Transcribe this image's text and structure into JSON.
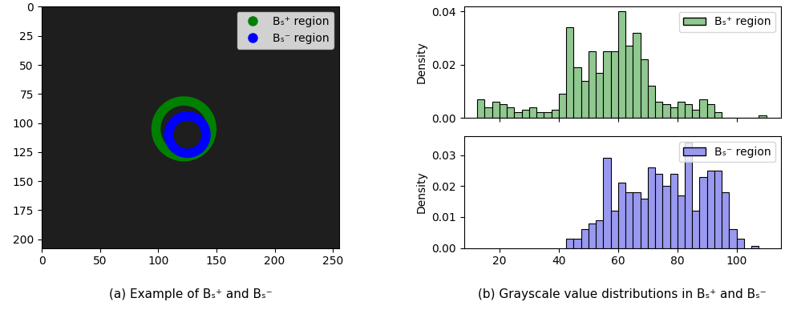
{
  "chart_data": [
    {
      "type": "image",
      "caption": "(a) Example of Bₛ⁺ and Bₛ⁻",
      "xlim": [
        -0.5,
        255.5
      ],
      "ylim": [
        207.5,
        -0.5
      ],
      "xticks": [
        0,
        50,
        100,
        150,
        200,
        250
      ],
      "yticks": [
        0,
        25,
        50,
        75,
        100,
        125,
        150,
        175,
        200
      ],
      "legend": "upper right",
      "series": [
        {
          "name": "Bₛ⁺ region",
          "color": "#008000",
          "center": [
            122,
            105
          ],
          "radii": [
            20,
            28
          ]
        },
        {
          "name": "Bₛ⁻ region",
          "color": "#0000ff",
          "center": [
            125,
            110
          ],
          "radii": [
            12,
            20
          ]
        }
      ]
    },
    {
      "type": "histogram",
      "caption": "(b) Grayscale value distributions in Bₛ⁺ and Bₛ⁻",
      "ylabel": "Density",
      "xlim": [
        8,
        115
      ],
      "xticks": [
        20,
        40,
        60,
        80,
        100
      ],
      "ylim": [
        0,
        0.042
      ],
      "yticks": [
        {
          "value": 0,
          "label": "0.00"
        },
        {
          "value": 0.02,
          "label": "0.02"
        },
        {
          "value": 0.04,
          "label": "0.04"
        }
      ],
      "tick_labels": "y",
      "legend": "upper right",
      "series": [
        {
          "name": "Bₛ⁺ region",
          "color": "#90c890",
          "bins": [
            12.5,
            15,
            17.5,
            20,
            22.5,
            25,
            27.5,
            30,
            32.5,
            35,
            37.5,
            40,
            42.5,
            45,
            47.5,
            50,
            52.5,
            55,
            57.5,
            60,
            62.5,
            65,
            67.5,
            70,
            72.5,
            75,
            77.5,
            80,
            82.5,
            85,
            87.5,
            90,
            92.5,
            95,
            97.5,
            100,
            102.5,
            105,
            107.5,
            110
          ],
          "values": [
            0.007,
            0.004,
            0.006,
            0.005,
            0.004,
            0.002,
            0.003,
            0.004,
            0.002,
            0.002,
            0.003,
            0.009,
            0.034,
            0.019,
            0.014,
            0.025,
            0.017,
            0.025,
            0.025,
            0.04,
            0.027,
            0.032,
            0.022,
            0.012,
            0.006,
            0.005,
            0.004,
            0.006,
            0.005,
            0.003,
            0.007,
            0.005,
            0.002,
            0,
            0,
            0,
            0,
            0,
            0.001
          ]
        }
      ]
    },
    {
      "type": "histogram",
      "ylabel": "Density",
      "xlim": [
        8,
        115
      ],
      "xticks": [
        20,
        40,
        60,
        80,
        100
      ],
      "ylim": [
        0,
        0.036
      ],
      "yticks": [
        {
          "value": 0,
          "label": "0.00"
        },
        {
          "value": 0.01,
          "label": "0.01"
        },
        {
          "value": 0.02,
          "label": "0.02"
        },
        {
          "value": 0.03,
          "label": "0.03"
        }
      ],
      "legend": "upper right",
      "series": [
        {
          "name": "Bₛ⁻ region",
          "color": "#9999f0",
          "bins": [
            42.5,
            45,
            47.5,
            50,
            52.5,
            55,
            57.5,
            60,
            62.5,
            65,
            67.5,
            70,
            72.5,
            75,
            77.5,
            80,
            82.5,
            85,
            87.5,
            90,
            92.5,
            95,
            97.5,
            100,
            102.5,
            105,
            107.5
          ],
          "values": [
            0.003,
            0.003,
            0.006,
            0.008,
            0.009,
            0.029,
            0.012,
            0.021,
            0.018,
            0.018,
            0.016,
            0.026,
            0.024,
            0.02,
            0.024,
            0.017,
            0.034,
            0.012,
            0.023,
            0.025,
            0.025,
            0.018,
            0.006,
            0.003,
            0,
            0.0008
          ]
        }
      ]
    }
  ]
}
